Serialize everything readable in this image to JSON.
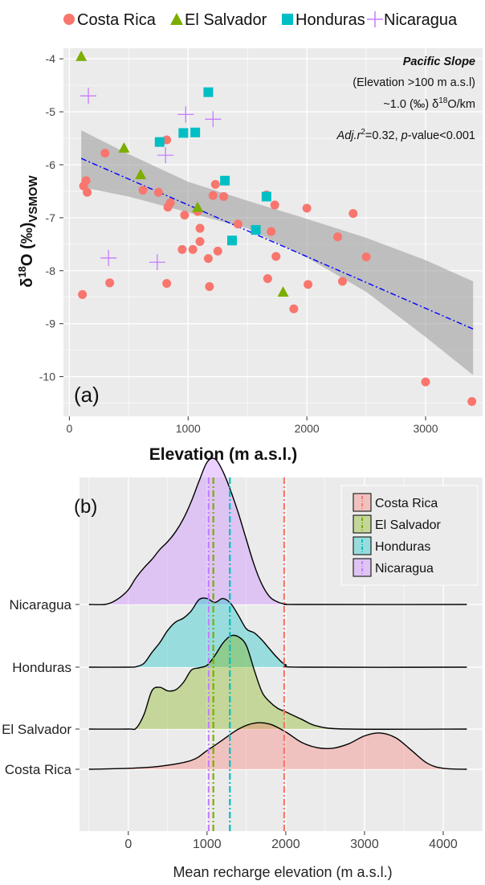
{
  "legend_top": [
    {
      "name": "Costa Rica",
      "shape": "circle"
    },
    {
      "name": "El Salvador",
      "shape": "triangle"
    },
    {
      "name": "Honduras",
      "shape": "square"
    },
    {
      "name": "Nicaragua",
      "shape": "plus"
    }
  ],
  "colors": {
    "Costa Rica": "#f8766d",
    "El Salvador": "#7cae00",
    "Honduras": "#00bfc4",
    "Nicaragua": "#c77cff",
    "panel_bg": "#ebebeb",
    "grid": "#ffffff",
    "fit_line": "#0000ff",
    "ci_band": "#999999"
  },
  "panel_a": {
    "label": "(a)",
    "annotations": [
      "Pacific Slope",
      "(Elevation >100 m a.s.l)",
      "~1.0 (‰) δ18O/km",
      "Adj.r2=0.32, p-value<0.001"
    ],
    "ylabel": "δ18O (‰)VSMOW",
    "xlabel": "Elevation (m a.s.l.)",
    "xticks": [
      "0",
      "1000",
      "2000",
      "3000"
    ],
    "yticks": [
      "-4",
      "-5",
      "-6",
      "-7",
      "-8",
      "-9",
      "-10"
    ]
  },
  "panel_b": {
    "label": "(b)",
    "legend": [
      "Costa Rica",
      "El Salvador",
      "Honduras",
      "Nicaragua"
    ],
    "ycats": [
      "Costa Rica",
      "El Salvador",
      "Honduras",
      "Nicaragua"
    ],
    "xlabel": "Mean recharge elevation (m a.s.l.)",
    "xticks": [
      "0",
      "1000",
      "2000",
      "3000",
      "4000"
    ]
  },
  "chart_data": [
    {
      "type": "scatter",
      "title": "",
      "xlabel": "Elevation (m a.s.l.)",
      "ylabel": "δ18O (‰)VSMOW",
      "xlim": [
        -50,
        3480
      ],
      "ylim": [
        -10.75,
        -3.8
      ],
      "grid": true,
      "legend_placement": "top",
      "series": [
        {
          "name": "Costa Rica",
          "points": [
            [
              110,
              -8.45
            ],
            [
              120,
              -6.4
            ],
            [
              140,
              -6.3
            ],
            [
              150,
              -6.52
            ],
            [
              300,
              -5.78
            ],
            [
              340,
              -8.23
            ],
            [
              620,
              -6.48
            ],
            [
              750,
              -6.52
            ],
            [
              820,
              -8.24
            ],
            [
              820,
              -5.53
            ],
            [
              830,
              -6.8
            ],
            [
              850,
              -6.72
            ],
            [
              950,
              -7.6
            ],
            [
              970,
              -6.95
            ],
            [
              1040,
              -7.6
            ],
            [
              1080,
              -6.88
            ],
            [
              1100,
              -7.45
            ],
            [
              1100,
              -7.2
            ],
            [
              1170,
              -7.77
            ],
            [
              1180,
              -8.3
            ],
            [
              1210,
              -6.58
            ],
            [
              1230,
              -6.37
            ],
            [
              1250,
              -7.63
            ],
            [
              1300,
              -6.6
            ],
            [
              1420,
              -7.12
            ],
            [
              1660,
              -6.57
            ],
            [
              1670,
              -8.15
            ],
            [
              1700,
              -7.26
            ],
            [
              1730,
              -6.76
            ],
            [
              1740,
              -7.73
            ],
            [
              1890,
              -8.72
            ],
            [
              2000,
              -6.82
            ],
            [
              2010,
              -8.26
            ],
            [
              2260,
              -7.36
            ],
            [
              2300,
              -8.2
            ],
            [
              2390,
              -6.92
            ],
            [
              2500,
              -7.74
            ],
            [
              3000,
              -10.1
            ],
            [
              3390,
              -10.47
            ]
          ]
        },
        {
          "name": "El Salvador",
          "points": [
            [
              100,
              -3.95
            ],
            [
              460,
              -5.68
            ],
            [
              600,
              -6.18
            ],
            [
              1080,
              -6.8
            ],
            [
              1800,
              -8.4
            ]
          ]
        },
        {
          "name": "Honduras",
          "points": [
            [
              760,
              -5.57
            ],
            [
              960,
              -5.4
            ],
            [
              1060,
              -5.39
            ],
            [
              1170,
              -4.63
            ],
            [
              1310,
              -6.3
            ],
            [
              1370,
              -7.43
            ],
            [
              1570,
              -7.23
            ],
            [
              1660,
              -6.6
            ]
          ]
        },
        {
          "name": "Nicaragua",
          "points": [
            [
              160,
              -4.7
            ],
            [
              330,
              -7.76
            ],
            [
              740,
              -7.84
            ],
            [
              810,
              -5.82
            ],
            [
              980,
              -5.05
            ],
            [
              1210,
              -5.14
            ]
          ]
        }
      ],
      "fit": {
        "x": [
          100,
          3400
        ],
        "y": [
          -5.88,
          -9.1
        ]
      },
      "ci_band": {
        "x": [
          100,
          500,
          1000,
          1500,
          2000,
          2500,
          3000,
          3400
        ],
        "upper": [
          -5.35,
          -5.8,
          -6.32,
          -6.68,
          -7.02,
          -7.38,
          -7.8,
          -8.2
        ],
        "lower": [
          -6.42,
          -6.6,
          -6.9,
          -7.2,
          -7.75,
          -8.4,
          -9.25,
          -9.97
        ]
      }
    },
    {
      "type": "area",
      "title": "",
      "xlabel": "Mean recharge elevation (m a.s.l.)",
      "xlim": [
        -620,
        4500
      ],
      "grid": true,
      "legend_placement": "top-right",
      "categories": [
        "Costa Rica",
        "El Salvador",
        "Honduras",
        "Nicaragua"
      ],
      "means": {
        "Costa Rica": 1980,
        "El Salvador": 1080,
        "Honduras": 1290,
        "Nicaragua": 1020
      },
      "density_series": [
        {
          "name": "Costa Rica",
          "x": [
            -500,
            0,
            400,
            800,
            1000,
            1200,
            1400,
            1600,
            1800,
            2000,
            2200,
            2400,
            2600,
            2800,
            3000,
            3200,
            3400,
            3600,
            3800,
            4000,
            4300
          ],
          "h": [
            0,
            0.02,
            0.06,
            0.18,
            0.38,
            0.6,
            0.82,
            0.94,
            0.92,
            0.76,
            0.55,
            0.44,
            0.43,
            0.52,
            0.68,
            0.74,
            0.64,
            0.38,
            0.12,
            0.02,
            0
          ]
        },
        {
          "name": "El Salvador",
          "x": [
            -500,
            0,
            100,
            200,
            300,
            400,
            500,
            600,
            700,
            800,
            900,
            1000,
            1100,
            1200,
            1300,
            1400,
            1500,
            1600,
            1700,
            1800,
            1900,
            2000,
            2200,
            2400,
            2800,
            4300
          ],
          "h": [
            0,
            0.0,
            0.02,
            0.3,
            0.78,
            0.85,
            0.78,
            0.8,
            0.95,
            1.2,
            1.25,
            1.3,
            1.5,
            1.75,
            1.9,
            1.88,
            1.7,
            1.2,
            0.75,
            0.55,
            0.42,
            0.35,
            0.2,
            0.06,
            0,
            0
          ]
        },
        {
          "name": "Honduras",
          "x": [
            -500,
            0,
            100,
            200,
            300,
            400,
            500,
            600,
            700,
            800,
            900,
            1000,
            1100,
            1200,
            1300,
            1400,
            1500,
            1600,
            1700,
            1800,
            1900,
            2000,
            2200,
            4300
          ],
          "h": [
            0,
            0.0,
            0.01,
            0.08,
            0.3,
            0.5,
            0.75,
            0.92,
            1.0,
            1.15,
            1.38,
            1.4,
            1.32,
            1.4,
            1.3,
            1.05,
            0.78,
            0.7,
            0.55,
            0.36,
            0.18,
            0.05,
            0,
            0
          ]
        },
        {
          "name": "Nicaragua",
          "x": [
            -500,
            -300,
            -200,
            -100,
            0,
            100,
            200,
            300,
            400,
            500,
            600,
            700,
            800,
            900,
            1000,
            1100,
            1200,
            1300,
            1400,
            1500,
            1600,
            1700,
            1800,
            1900,
            2000,
            2200,
            4300
          ],
          "h": [
            0,
            0.0,
            0.05,
            0.15,
            0.3,
            0.55,
            0.75,
            0.92,
            1.12,
            1.28,
            1.48,
            1.75,
            2.1,
            2.52,
            2.9,
            2.97,
            2.72,
            2.32,
            1.85,
            1.32,
            0.8,
            0.4,
            0.15,
            0.05,
            0.01,
            0,
            0
          ]
        }
      ]
    }
  ]
}
